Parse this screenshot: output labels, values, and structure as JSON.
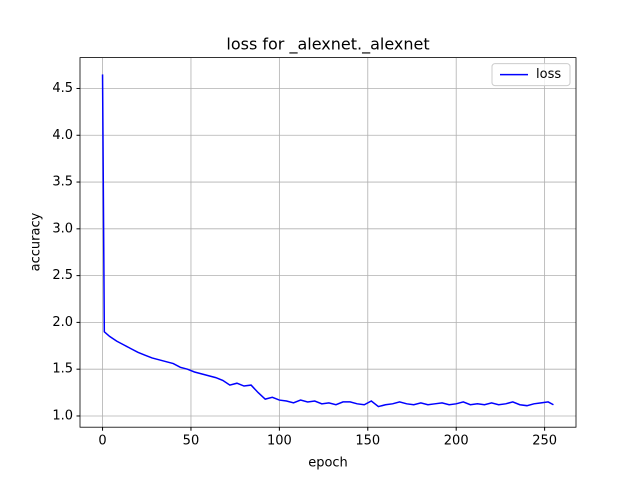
{
  "chart_data": {
    "type": "line",
    "title": "loss for _alexnet._alexnet",
    "xlabel": "epoch",
    "ylabel": "accuracy",
    "x": [
      0,
      1,
      4,
      8,
      12,
      16,
      20,
      24,
      28,
      32,
      36,
      40,
      44,
      48,
      52,
      56,
      60,
      64,
      68,
      72,
      76,
      80,
      84,
      88,
      92,
      96,
      100,
      104,
      108,
      112,
      116,
      120,
      124,
      128,
      132,
      136,
      140,
      144,
      148,
      152,
      156,
      160,
      164,
      168,
      172,
      176,
      180,
      184,
      188,
      192,
      196,
      200,
      204,
      208,
      212,
      216,
      220,
      224,
      228,
      232,
      236,
      240,
      244,
      248,
      252,
      255
    ],
    "series": [
      {
        "name": "loss",
        "color": "#0000ff",
        "values": [
          4.65,
          1.9,
          1.85,
          1.8,
          1.76,
          1.72,
          1.68,
          1.65,
          1.62,
          1.6,
          1.58,
          1.56,
          1.52,
          1.5,
          1.47,
          1.45,
          1.43,
          1.41,
          1.38,
          1.33,
          1.35,
          1.32,
          1.33,
          1.25,
          1.18,
          1.2,
          1.17,
          1.16,
          1.14,
          1.17,
          1.15,
          1.16,
          1.13,
          1.14,
          1.12,
          1.15,
          1.15,
          1.13,
          1.12,
          1.16,
          1.1,
          1.12,
          1.13,
          1.15,
          1.13,
          1.12,
          1.14,
          1.12,
          1.13,
          1.14,
          1.12,
          1.13,
          1.15,
          1.12,
          1.13,
          1.12,
          1.14,
          1.12,
          1.13,
          1.15,
          1.12,
          1.11,
          1.13,
          1.14,
          1.15,
          1.12
        ]
      }
    ],
    "xlim": [
      -12.75,
      267.75
    ],
    "ylim": [
      0.88,
      4.83
    ],
    "xticks": [
      0,
      50,
      100,
      150,
      200,
      250
    ],
    "yticks": [
      {
        "value": 1.0,
        "label": "1.0"
      },
      {
        "value": 1.5,
        "label": "1.5"
      },
      {
        "value": 2.0,
        "label": "2.0"
      },
      {
        "value": 2.5,
        "label": "2.5"
      },
      {
        "value": 3.0,
        "label": "3.0"
      },
      {
        "value": 3.5,
        "label": "3.5"
      },
      {
        "value": 4.0,
        "label": "4.0"
      },
      {
        "value": 4.5,
        "label": "4.5"
      }
    ],
    "grid": true,
    "legend": "upper right"
  }
}
